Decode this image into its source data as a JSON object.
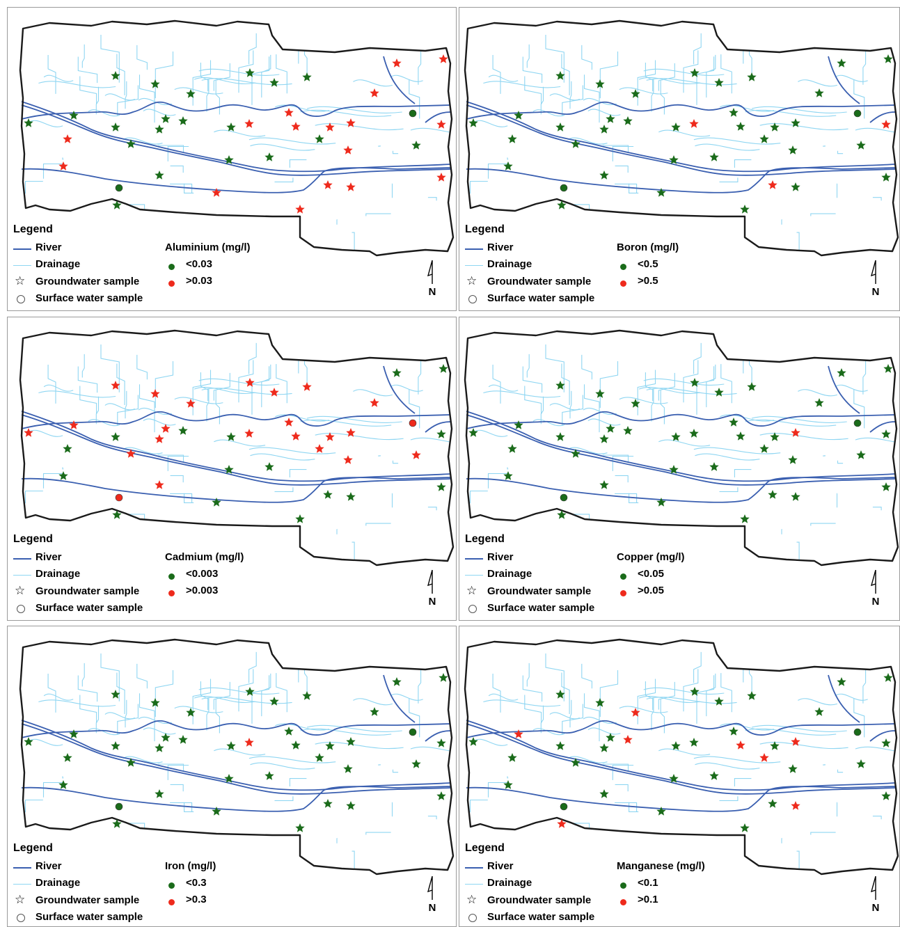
{
  "legend": {
    "title": "Legend",
    "river": "River",
    "drainage": "Drainage",
    "groundwater": "Groundwater sample",
    "surface": "Surface water sample"
  },
  "colors": {
    "river": "#3a5fb0",
    "drainage": "#8fd6f2",
    "boundary": "#1a1a1a",
    "below": "#1a6b1a",
    "above": "#ee2a1c"
  },
  "panels": [
    {
      "id": "aluminium",
      "param": "Aluminium (mg/l)",
      "below": "<0.03",
      "above": ">0.03"
    },
    {
      "id": "boron",
      "param": "Boron (mg/l)",
      "below": "<0.5",
      "above": ">0.5"
    },
    {
      "id": "cadmium",
      "param": "Cadmium (mg/l)",
      "below": "<0.003",
      "above": ">0.003"
    },
    {
      "id": "copper",
      "param": "Copper (mg/l)",
      "below": "<0.05",
      "above": ">0.05"
    },
    {
      "id": "iron",
      "param": "Iron (mg/l)",
      "below": "<0.3",
      "above": ">0.3"
    },
    {
      "id": "manganese",
      "param": "Manganese (mg/l)",
      "below": "<0.1",
      "above": ">0.1"
    }
  ],
  "north_arrow_label": "N"
}
